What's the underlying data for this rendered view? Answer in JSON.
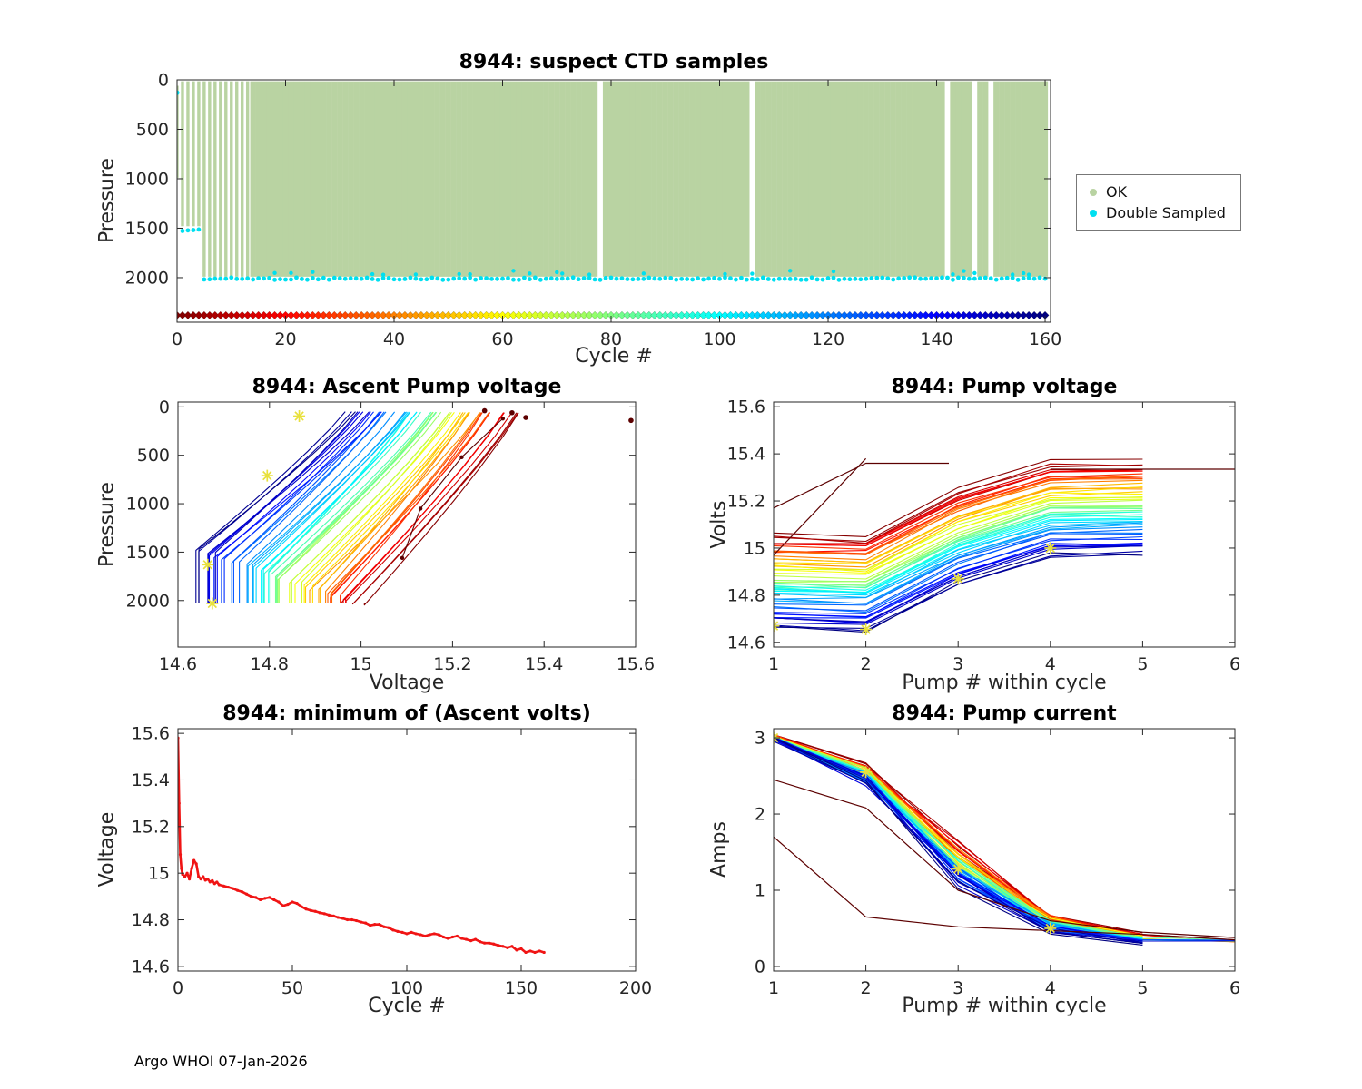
{
  "footer": {
    "text": "Argo WHOI 07-Jan-2026"
  },
  "palette": {
    "ok": "#b9d3a2",
    "double_sampled": "#00dff0",
    "highlight_star": "#e8e03c",
    "outlier_dark_red": "#5c0000",
    "min_line_red": "#f01414",
    "axis": "#262626"
  },
  "chart_data": [
    {
      "id": "ctd",
      "type": "scatter",
      "title": "8944: suspect CTD samples",
      "xlabel": "Cycle #",
      "ylabel": "Pressure",
      "xlim": [
        0,
        161
      ],
      "ylim": [
        0,
        2450
      ],
      "y_down": true,
      "xticks": [
        0,
        20,
        40,
        60,
        80,
        100,
        120,
        140,
        160
      ],
      "yticks": [
        0,
        500,
        1000,
        1500,
        2000
      ],
      "legend": {
        "items": [
          {
            "label": "OK",
            "color": "#b9d3a2"
          },
          {
            "label": "Double Sampled",
            "color": "#00dff0"
          }
        ]
      },
      "ok_columns": {
        "from": 0,
        "to": 160,
        "separated_until": 13,
        "missing": [
          78,
          106,
          142,
          147,
          150
        ],
        "depths": [
          {
            "from": 0,
            "to": 0,
            "top": 60,
            "bottom": 990
          },
          {
            "from": 1,
            "to": 4,
            "top": 15,
            "bottom": 1480
          },
          {
            "from": 5,
            "to": 160,
            "top": 15,
            "bottom": 1990
          }
        ]
      },
      "double_sampled": {
        "surface_point": {
          "cycle": 0,
          "pressure": 130
        },
        "mid_band": {
          "from": 1,
          "to": 4,
          "pressure": 1520
        },
        "deep_band": {
          "from": 5,
          "to": 160,
          "pressure": 2010
        },
        "extra_band_pressure": 1950
      },
      "cycle_marker_row": {
        "pressure": 2380,
        "from": 0,
        "to": 160
      }
    },
    {
      "id": "ascent",
      "type": "multiline",
      "title": "8944: Ascent Pump voltage",
      "xlabel": "Voltage",
      "ylabel": "Pressure",
      "xlim": [
        14.6,
        15.6
      ],
      "ylim": [
        -50,
        2480
      ],
      "y_down": true,
      "xticks": [
        14.6,
        14.8,
        15,
        15.2,
        15.4,
        15.6
      ],
      "yticks": [
        0,
        500,
        1000,
        1500,
        2000
      ],
      "series_model": {
        "cycle_from": 1,
        "cycle_to": 160,
        "cycle_step": 3,
        "cycle_max": 160,
        "deep_pressure": 2030,
        "kink_pressure_range": [
          2030,
          1450
        ],
        "deep_voltage_range": [
          15.0,
          14.645
        ],
        "surface_voltage_range": [
          15.35,
          14.975
        ],
        "jitter": 0.02
      },
      "outlier_lines": [
        {
          "points": [
            [
              15.09,
              1560
            ],
            [
              15.13,
              1050
            ],
            [
              15.22,
              520
            ],
            [
              15.31,
              120
            ]
          ],
          "color": "#5c0000"
        }
      ],
      "outlier_points": [
        {
          "x": 15.59,
          "y": 140
        },
        {
          "x": 15.33,
          "y": 60
        },
        {
          "x": 15.27,
          "y": 40
        },
        {
          "x": 15.36,
          "y": 110
        }
      ],
      "star_markers": [
        [
          14.665,
          1630
        ],
        [
          14.675,
          2030
        ],
        [
          14.795,
          710
        ],
        [
          14.865,
          95
        ]
      ]
    },
    {
      "id": "pumpv",
      "type": "pumplines",
      "title": "8944: Pump voltage",
      "xlabel": "Pump # within cycle",
      "ylabel": "Volts",
      "xlim": [
        1,
        6
      ],
      "ylim": [
        14.58,
        15.62
      ],
      "y_down": false,
      "xticks": [
        1,
        2,
        3,
        4,
        5,
        6
      ],
      "yticks": [
        14.6,
        14.8,
        15,
        15.2,
        15.4,
        15.6
      ],
      "series_model": {
        "cycle_from": 1,
        "cycle_to": 160,
        "cycle_step": 3,
        "cycle_max": 160,
        "pumps": [
          1,
          2,
          3,
          4,
          5
        ],
        "start_voltage_range": [
          15.06,
          14.665
        ],
        "pump_offsets": [
          0,
          -0.012,
          0.185,
          0.305,
          0.312
        ],
        "jitter": 0.016
      },
      "extra_lines": [
        {
          "points": [
            [
              1,
              14.97
            ],
            [
              2,
              15.38
            ]
          ],
          "color": "#5c0000"
        },
        {
          "points": [
            [
              1,
              15.17
            ],
            [
              2,
              15.36
            ],
            [
              2.9,
              15.36
            ]
          ],
          "color": "#5c0000"
        },
        {
          "points": [
            [
              4,
              15.335
            ],
            [
              5,
              15.335
            ],
            [
              6,
              15.335
            ]
          ],
          "color": "#5c0000"
        }
      ],
      "star_markers": [
        [
          1,
          14.67
        ],
        [
          2,
          14.655
        ],
        [
          3,
          14.87
        ],
        [
          4,
          15.0
        ]
      ]
    },
    {
      "id": "minv",
      "type": "line",
      "title": "8944: minimum of (Ascent volts)",
      "xlabel": "Cycle #",
      "ylabel": "Voltage",
      "xlim": [
        0,
        200
      ],
      "ylim": [
        14.58,
        15.62
      ],
      "y_down": false,
      "xticks": [
        0,
        50,
        100,
        150,
        200
      ],
      "yticks": [
        14.6,
        14.8,
        15,
        15.2,
        15.4,
        15.6
      ],
      "line_color": "#f01414",
      "points": [
        [
          0,
          15.58
        ],
        [
          0.5,
          15.3
        ],
        [
          1,
          15.08
        ],
        [
          1.5,
          15.02
        ],
        [
          2,
          14.995
        ],
        [
          3,
          14.985
        ],
        [
          4,
          15.0
        ],
        [
          5,
          14.975
        ],
        [
          6,
          15.02
        ],
        [
          7,
          15.055
        ],
        [
          8,
          15.04
        ],
        [
          9,
          14.985
        ],
        [
          10,
          14.975
        ],
        [
          11,
          14.985
        ],
        [
          12,
          14.97
        ],
        [
          13,
          14.975
        ],
        [
          14,
          14.962
        ],
        [
          15,
          14.968
        ],
        [
          16,
          14.955
        ],
        [
          17,
          14.962
        ],
        [
          18,
          14.95
        ],
        [
          20,
          14.945
        ],
        [
          22,
          14.94
        ],
        [
          24,
          14.934
        ],
        [
          26,
          14.926
        ],
        [
          28,
          14.92
        ],
        [
          30,
          14.91
        ],
        [
          32,
          14.9
        ],
        [
          34,
          14.896
        ],
        [
          36,
          14.886
        ],
        [
          38,
          14.892
        ],
        [
          40,
          14.896
        ],
        [
          42,
          14.886
        ],
        [
          44,
          14.876
        ],
        [
          46,
          14.86
        ],
        [
          48,
          14.866
        ],
        [
          50,
          14.876
        ],
        [
          52,
          14.87
        ],
        [
          54,
          14.856
        ],
        [
          56,
          14.846
        ],
        [
          58,
          14.84
        ],
        [
          60,
          14.836
        ],
        [
          62,
          14.83
        ],
        [
          64,
          14.826
        ],
        [
          66,
          14.82
        ],
        [
          68,
          14.816
        ],
        [
          70,
          14.81
        ],
        [
          72,
          14.806
        ],
        [
          74,
          14.8
        ],
        [
          76,
          14.8
        ],
        [
          78,
          14.796
        ],
        [
          80,
          14.79
        ],
        [
          82,
          14.786
        ],
        [
          84,
          14.776
        ],
        [
          86,
          14.78
        ],
        [
          88,
          14.78
        ],
        [
          90,
          14.77
        ],
        [
          92,
          14.766
        ],
        [
          94,
          14.756
        ],
        [
          96,
          14.75
        ],
        [
          98,
          14.746
        ],
        [
          100,
          14.74
        ],
        [
          102,
          14.746
        ],
        [
          104,
          14.74
        ],
        [
          106,
          14.736
        ],
        [
          108,
          14.73
        ],
        [
          110,
          14.736
        ],
        [
          112,
          14.74
        ],
        [
          114,
          14.736
        ],
        [
          116,
          14.726
        ],
        [
          118,
          14.72
        ],
        [
          120,
          14.726
        ],
        [
          122,
          14.73
        ],
        [
          124,
          14.72
        ],
        [
          126,
          14.716
        ],
        [
          128,
          14.71
        ],
        [
          130,
          14.716
        ],
        [
          132,
          14.706
        ],
        [
          134,
          14.7
        ],
        [
          136,
          14.7
        ],
        [
          138,
          14.696
        ],
        [
          140,
          14.69
        ],
        [
          142,
          14.686
        ],
        [
          144,
          14.68
        ],
        [
          146,
          14.686
        ],
        [
          148,
          14.67
        ],
        [
          150,
          14.676
        ],
        [
          152,
          14.66
        ],
        [
          154,
          14.666
        ],
        [
          156,
          14.66
        ],
        [
          158,
          14.666
        ],
        [
          160,
          14.66
        ]
      ]
    },
    {
      "id": "pumpc",
      "type": "pumplines",
      "title": "8944: Pump current",
      "xlabel": "Pump # within cycle",
      "ylabel": "Amps",
      "xlim": [
        1,
        6
      ],
      "ylim": [
        -0.06,
        3.12
      ],
      "y_down": false,
      "xticks": [
        1,
        2,
        3,
        4,
        5,
        6
      ],
      "yticks": [
        0,
        1,
        2,
        3
      ],
      "series_model": {
        "cycle_from": 1,
        "cycle_to": 160,
        "cycle_step": 3,
        "cycle_max": 160,
        "pumps": [
          1,
          2,
          3,
          4,
          5
        ],
        "pump_values": [
          [
            3.02,
            2.98
          ],
          [
            2.62,
            2.42
          ],
          [
            1.58,
            1.12
          ],
          [
            0.66,
            0.47
          ],
          [
            0.42,
            0.3
          ]
        ],
        "jitter": [
          0.03,
          0.08,
          0.1,
          0.05,
          0.03
        ],
        "extend_to_six": {
          "every": 21,
          "value": 0.34
        }
      },
      "outlier_lines": [
        {
          "points": [
            [
              1,
              2.45
            ],
            [
              2,
              2.08
            ],
            [
              3,
              1.0
            ],
            [
              4,
              0.6
            ],
            [
              5,
              0.45
            ],
            [
              6,
              0.38
            ]
          ],
          "color": "#5c0000"
        },
        {
          "points": [
            [
              1,
              1.7
            ],
            [
              2,
              0.65
            ],
            [
              3,
              0.52
            ],
            [
              4,
              0.47
            ],
            [
              5,
              0.42
            ],
            [
              6,
              0.35
            ]
          ],
          "color": "#5c0000"
        }
      ],
      "star_markers": [
        [
          1,
          3.0
        ],
        [
          2,
          2.55
        ],
        [
          3,
          1.28
        ],
        [
          4,
          0.5
        ]
      ]
    }
  ]
}
